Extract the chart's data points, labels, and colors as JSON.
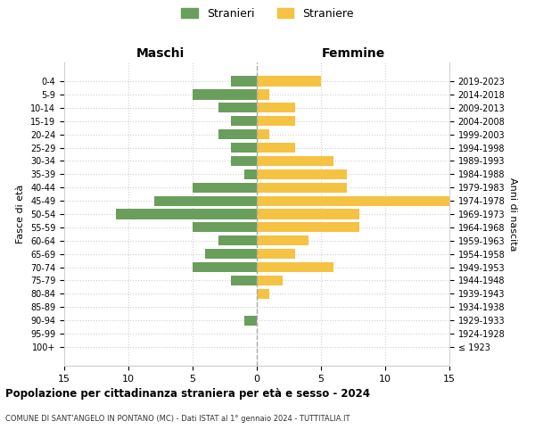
{
  "age_groups": [
    "100+",
    "95-99",
    "90-94",
    "85-89",
    "80-84",
    "75-79",
    "70-74",
    "65-69",
    "60-64",
    "55-59",
    "50-54",
    "45-49",
    "40-44",
    "35-39",
    "30-34",
    "25-29",
    "20-24",
    "15-19",
    "10-14",
    "5-9",
    "0-4"
  ],
  "birth_years": [
    "≤ 1923",
    "1924-1928",
    "1929-1933",
    "1934-1938",
    "1939-1943",
    "1944-1948",
    "1949-1953",
    "1954-1958",
    "1959-1963",
    "1964-1968",
    "1969-1973",
    "1974-1978",
    "1979-1983",
    "1984-1988",
    "1989-1993",
    "1994-1998",
    "1999-2003",
    "2004-2008",
    "2009-2013",
    "2014-2018",
    "2019-2023"
  ],
  "maschi": [
    0,
    0,
    1,
    0,
    0,
    2,
    5,
    4,
    3,
    5,
    11,
    8,
    5,
    1,
    2,
    2,
    3,
    2,
    3,
    5,
    2
  ],
  "femmine": [
    0,
    0,
    0,
    0,
    1,
    2,
    6,
    3,
    4,
    8,
    8,
    15,
    7,
    7,
    6,
    3,
    1,
    3,
    3,
    1,
    5
  ],
  "maschi_color": "#6a9e5c",
  "femmine_color": "#f5c242",
  "background_color": "#ffffff",
  "grid_color": "#d0d0d0",
  "title": "Popolazione per cittadinanza straniera per età e sesso - 2024",
  "subtitle": "COMUNE DI SANT'ANGELO IN PONTANO (MC) - Dati ISTAT al 1° gennaio 2024 - TUTTITALIA.IT",
  "xlabel_left": "Maschi",
  "xlabel_right": "Femmine",
  "ylabel_left": "Fasce di età",
  "ylabel_right": "Anni di nascita",
  "legend_maschi": "Stranieri",
  "legend_femmine": "Straniere",
  "xlim": 15,
  "dashed_line_color": "#aaaaaa"
}
